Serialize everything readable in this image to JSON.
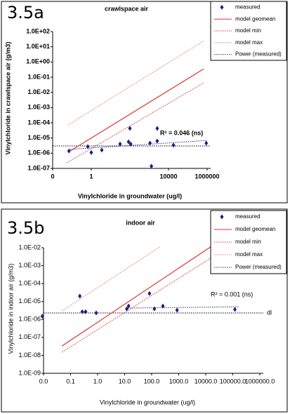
{
  "chart_data": [
    {
      "type": "scatter",
      "label": "3.5a",
      "title": "crawlspace air",
      "x_label": "Vinylchloride in groundwater (ug/l)",
      "y_label": "Vinylchloride in crawlspace air (g/m3)",
      "log_x": true,
      "log_y": true,
      "xlim": [
        0.01,
        1000000
      ],
      "ylim": [
        1e-07,
        100
      ],
      "xticks": [
        {
          "value": 0.01,
          "label": "0"
        },
        1,
        10000,
        1000000
      ],
      "yticks": [
        {
          "value": 1e-07,
          "label": "1.0E-07"
        },
        {
          "value": 1e-06,
          "label": "1.0E-06"
        },
        {
          "value": 1e-05,
          "label": "1.0E-05"
        },
        {
          "value": 0.0001,
          "label": "1.0E-04"
        },
        {
          "value": 0.001,
          "label": "1.0E-03"
        },
        {
          "value": 0.01,
          "label": "1.0E-02"
        },
        {
          "value": 0.1,
          "label": "1.0E-01"
        },
        {
          "value": 1,
          "label": "1.0E+00"
        },
        {
          "value": 10,
          "label": "1.0E+01"
        },
        {
          "value": 100,
          "label": "1.0E+02"
        }
      ],
      "annotation": "R² = 0.046 (ns)",
      "detection_limit": 3e-06,
      "series": [
        {
          "name": "measured",
          "color": "#1a1f80",
          "style": "marker",
          "x": [
            0.07,
            0.66,
            1.0,
            3.5,
            31,
            85,
            100,
            110,
            1100,
            1300,
            2600,
            2600,
            18000,
            900000
          ],
          "y": [
            1.4e-06,
            2.7e-06,
            1.1e-06,
            1.6e-06,
            4e-06,
            5.6e-06,
            4.3e-05,
            4e-06,
            4.6e-06,
            1.4e-07,
            4.3e-05,
            6.3e-06,
            3.4e-06,
            4.6e-06
          ]
        },
        {
          "name": "model geomean",
          "color": "#e03030",
          "style": "solid",
          "x": [
            0.081,
            660000
          ],
          "y": [
            1.4e-06,
            0.35
          ]
        },
        {
          "name": "model min",
          "color": "#d03838",
          "style": "dotted",
          "x": [
            0.053,
            660000
          ],
          "y": [
            2.3e-07,
            0.042
          ]
        },
        {
          "name": "model max",
          "color": "#e87878",
          "style": "dotted",
          "x": [
            0.063,
            660000
          ],
          "y": [
            7.2e-05,
            24
          ]
        },
        {
          "name": "Power (measured)",
          "color": "#203080",
          "style": "dotted",
          "x": [
            0.081,
            1000000
          ],
          "y": [
            1.8e-06,
            6.9e-06
          ]
        }
      ]
    },
    {
      "type": "scatter",
      "label": "3.5b",
      "title": "indoor air",
      "x_label": "Vinylchloride in groundwater (ug/l)",
      "y_label": "Vinylchloride in indoor air (g/m3)",
      "log_x": true,
      "log_y": true,
      "xlim": [
        0.01,
        1000000
      ],
      "ylim": [
        1e-09,
        0.01
      ],
      "xticks": [
        {
          "value": 0.01,
          "label": "0.0"
        },
        {
          "value": 0.1,
          "label": "0.1"
        },
        {
          "value": 1,
          "label": "1.0"
        },
        {
          "value": 10,
          "label": "10.0"
        },
        {
          "value": 100,
          "label": "100.0"
        },
        {
          "value": 1000,
          "label": "1000.0"
        },
        {
          "value": 10000,
          "label": "10000.0"
        },
        {
          "value": 100000,
          "label": "100000.0"
        },
        {
          "value": 1000000,
          "label": "1000000.0"
        }
      ],
      "yticks": [
        {
          "value": 1e-09,
          "label": "1.0E-09"
        },
        {
          "value": 1e-08,
          "label": "1.0E-08"
        },
        {
          "value": 1e-07,
          "label": "1.0E-07"
        },
        {
          "value": 1e-06,
          "label": "1.0E-06"
        },
        {
          "value": 1e-05,
          "label": "1.0E-05"
        },
        {
          "value": 0.0001,
          "label": "1.0E-04"
        },
        {
          "value": 0.001,
          "label": "1.0E-03"
        },
        {
          "value": 0.01,
          "label": "1.0E-02"
        }
      ],
      "annotation": "R² = 0.001 (ns)",
      "detection_limit": 2.3e-06,
      "detection_limit_label": "dl",
      "series": [
        {
          "name": "measured",
          "color": "#1a1f80",
          "style": "marker",
          "x": [
            0.009,
            0.22,
            0.27,
            0.36,
            0.89,
            12,
            14,
            83,
            126,
            260,
            870,
            120000
          ],
          "y": [
            1.5e-06,
            2e-05,
            2.7e-06,
            2.7e-06,
            2.3e-06,
            3.9e-06,
            5.6e-06,
            2.8e-05,
            3.9e-06,
            5.6e-06,
            3.3e-06,
            3.6e-06
          ]
        },
        {
          "name": "model geomean",
          "color": "#e03030",
          "style": "solid",
          "x": [
            0.048,
            15000
          ],
          "y": [
            3.3e-08,
            0.011
          ]
        },
        {
          "name": "model min",
          "color": "#d03838",
          "style": "dotted",
          "x": [
            0.048,
            15000
          ],
          "y": [
            1.5e-08,
            0.0026
          ]
        },
        {
          "name": "model max",
          "color": "#e87878",
          "style": "dotted",
          "x": [
            0.048,
            200
          ],
          "y": [
            3e-06,
            0.011
          ]
        },
        {
          "name": "Power (measured)",
          "color": "#203080",
          "style": "dotted",
          "x": [
            11,
            170000
          ],
          "y": [
            4.3e-06,
            5.1e-06
          ]
        }
      ]
    }
  ]
}
